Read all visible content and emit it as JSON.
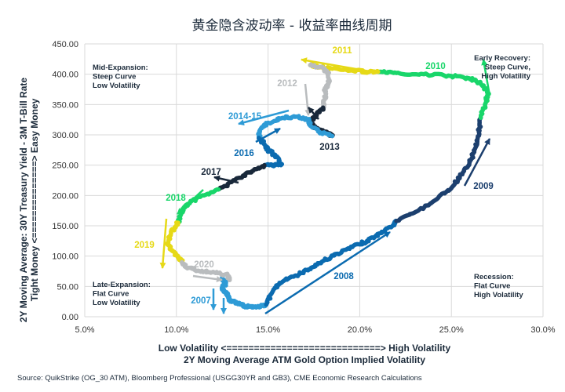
{
  "chart_data": {
    "type": "line",
    "title": "黄金隐含波动率 - 收益率曲线周期",
    "xlabel_line1": "Low Volatility <============================> High Volatility",
    "xlabel_line2": "2Y Moving Average ATM Gold Option Implied Volatility",
    "ylabel_line1": "2Y Moving Average: 30Y Treasury Yield - 3M T-Bill Rate",
    "ylabel_line2": "Tight Money <==============> Easy Money",
    "xlim": [
      5.0,
      30.0
    ],
    "ylim": [
      0,
      450
    ],
    "x_ticks": [
      "5.0%",
      "10.0%",
      "15.0%",
      "20.0%",
      "25.0%",
      "30.0%"
    ],
    "y_ticks": [
      "0.00",
      "50.00",
      "100.00",
      "150.00",
      "200.00",
      "250.00",
      "300.00",
      "350.00",
      "400.00",
      "450.00"
    ],
    "grid": true,
    "quadrant_labels": [
      {
        "lines": [
          "Mid-Expansion:",
          "Steep Curve",
          "Low Volatility"
        ],
        "anchor": "top-left"
      },
      {
        "lines": [
          "Early Recovery:",
          "Steep Curve,",
          "High Volatility"
        ],
        "anchor": "top-right"
      },
      {
        "lines": [
          "Late-Expansion:",
          "Flat Curve",
          "Low Volatility"
        ],
        "anchor": "bottom-left"
      },
      {
        "lines": [
          "Recession:",
          "Flat Curve",
          "High Volatility"
        ],
        "anchor": "bottom-right"
      }
    ],
    "segments": [
      {
        "label": "2007",
        "color": "#2e9bd6",
        "points": [
          [
            12.5,
            65
          ],
          [
            12.7,
            55
          ],
          [
            12.5,
            50
          ],
          [
            12.6,
            42
          ],
          [
            12.8,
            36
          ],
          [
            12.9,
            28
          ],
          [
            13.2,
            24
          ],
          [
            13.5,
            20
          ],
          [
            13.8,
            17
          ],
          [
            14.2,
            17
          ],
          [
            14.6,
            17.5
          ],
          [
            14.9,
            20
          ]
        ]
      },
      {
        "label": "2008",
        "color": "#0b6bb0",
        "points": [
          [
            14.9,
            20
          ],
          [
            15.3,
            45
          ],
          [
            15.8,
            58
          ],
          [
            16.5,
            68
          ],
          [
            17.2,
            78
          ],
          [
            18.0,
            92
          ],
          [
            18.8,
            104
          ],
          [
            19.6,
            115
          ],
          [
            20.4,
            125
          ],
          [
            21.2,
            138
          ],
          [
            21.8,
            150
          ],
          [
            22.0,
            158
          ]
        ]
      },
      {
        "label": "2009",
        "color": "#1c3f6e",
        "points": [
          [
            22.0,
            158
          ],
          [
            23.0,
            172
          ],
          [
            24.0,
            190
          ],
          [
            25.0,
            212
          ],
          [
            25.6,
            235
          ],
          [
            26.0,
            255
          ],
          [
            26.3,
            278
          ],
          [
            26.5,
            305
          ],
          [
            26.6,
            328
          ]
        ]
      },
      {
        "label": "2010",
        "color": "#19d66a",
        "points": [
          [
            26.6,
            328
          ],
          [
            26.9,
            355
          ],
          [
            27.0,
            370
          ],
          [
            26.6,
            385
          ],
          [
            26.0,
            393
          ],
          [
            25.0,
            397
          ],
          [
            23.5,
            400
          ],
          [
            22.0,
            402
          ],
          [
            21.0,
            404
          ]
        ]
      },
      {
        "label": "2011",
        "color": "#e6d916",
        "points": [
          [
            21.0,
            404
          ],
          [
            20.5,
            404
          ],
          [
            19.5,
            406
          ],
          [
            18.5,
            409
          ],
          [
            17.7,
            413
          ],
          [
            17.3,
            415
          ]
        ]
      },
      {
        "label": "2012",
        "color": "#b9bcbe",
        "points": [
          [
            17.3,
            415
          ],
          [
            18.0,
            410
          ],
          [
            18.3,
            402
          ],
          [
            18.3,
            385
          ],
          [
            18.1,
            372
          ],
          [
            18.1,
            360
          ],
          [
            18.0,
            345
          ]
        ]
      },
      {
        "label": "2013",
        "color": "#19283a",
        "points": [
          [
            18.0,
            345
          ],
          [
            17.6,
            332
          ],
          [
            17.3,
            318
          ],
          [
            17.8,
            308
          ],
          [
            18.3,
            302
          ],
          [
            18.5,
            298
          ]
        ]
      },
      {
        "label": "2014-15",
        "color": "#2e9bd6",
        "points": [
          [
            18.5,
            298
          ],
          [
            17.8,
            305
          ],
          [
            17.3,
            315
          ],
          [
            17.2,
            325
          ],
          [
            16.5,
            330
          ],
          [
            15.8,
            328
          ],
          [
            15.0,
            320
          ],
          [
            14.6,
            310
          ],
          [
            14.5,
            295
          ]
        ]
      },
      {
        "label": "2016",
        "color": "#0b6bb0",
        "points": [
          [
            14.5,
            295
          ],
          [
            14.8,
            285
          ],
          [
            15.0,
            275
          ],
          [
            15.3,
            268
          ],
          [
            15.6,
            260
          ],
          [
            15.7,
            250
          ],
          [
            15.3,
            250
          ],
          [
            14.8,
            250
          ]
        ]
      },
      {
        "label": "2017",
        "color": "#19283a",
        "points": [
          [
            14.8,
            250
          ],
          [
            14.0,
            238
          ],
          [
            13.0,
            222
          ],
          [
            12.3,
            210
          ]
        ]
      },
      {
        "label": "2018",
        "color": "#19d66a",
        "points": [
          [
            12.3,
            210
          ],
          [
            11.5,
            200
          ],
          [
            10.8,
            190
          ],
          [
            10.4,
            180
          ],
          [
            10.2,
            165
          ],
          [
            10.1,
            155
          ]
        ]
      },
      {
        "label": "2019",
        "color": "#e6d916",
        "points": [
          [
            10.1,
            155
          ],
          [
            9.7,
            140
          ],
          [
            9.5,
            120
          ],
          [
            9.8,
            108
          ],
          [
            10.2,
            95
          ],
          [
            10.3,
            90
          ]
        ]
      },
      {
        "label": "2020",
        "color": "#b9bcbe",
        "points": [
          [
            10.3,
            90
          ],
          [
            10.5,
            82
          ],
          [
            11.2,
            76
          ],
          [
            12.0,
            74
          ],
          [
            12.8,
            68
          ],
          [
            12.9,
            62
          ]
        ]
      }
    ],
    "arrow_label_colors": {
      "2007": "#2e9bd6",
      "2008": "#0b6bb0",
      "2009": "#1c3f6e",
      "2010": "#19d66a",
      "2011": "#e6d916",
      "2012": "#b9bcbe",
      "2013": "#19283a",
      "2014-15": "#2e9bd6",
      "2016": "#0b6bb0",
      "2017": "#19283a",
      "2018": "#19d66a",
      "2019": "#e6d916",
      "2020": "#b9bcbe"
    },
    "source": "Source: QuikStrike (OG_30 ATM), Bloomberg Professional (USGG30YR and GB3), CME Economic Research Calculations"
  }
}
